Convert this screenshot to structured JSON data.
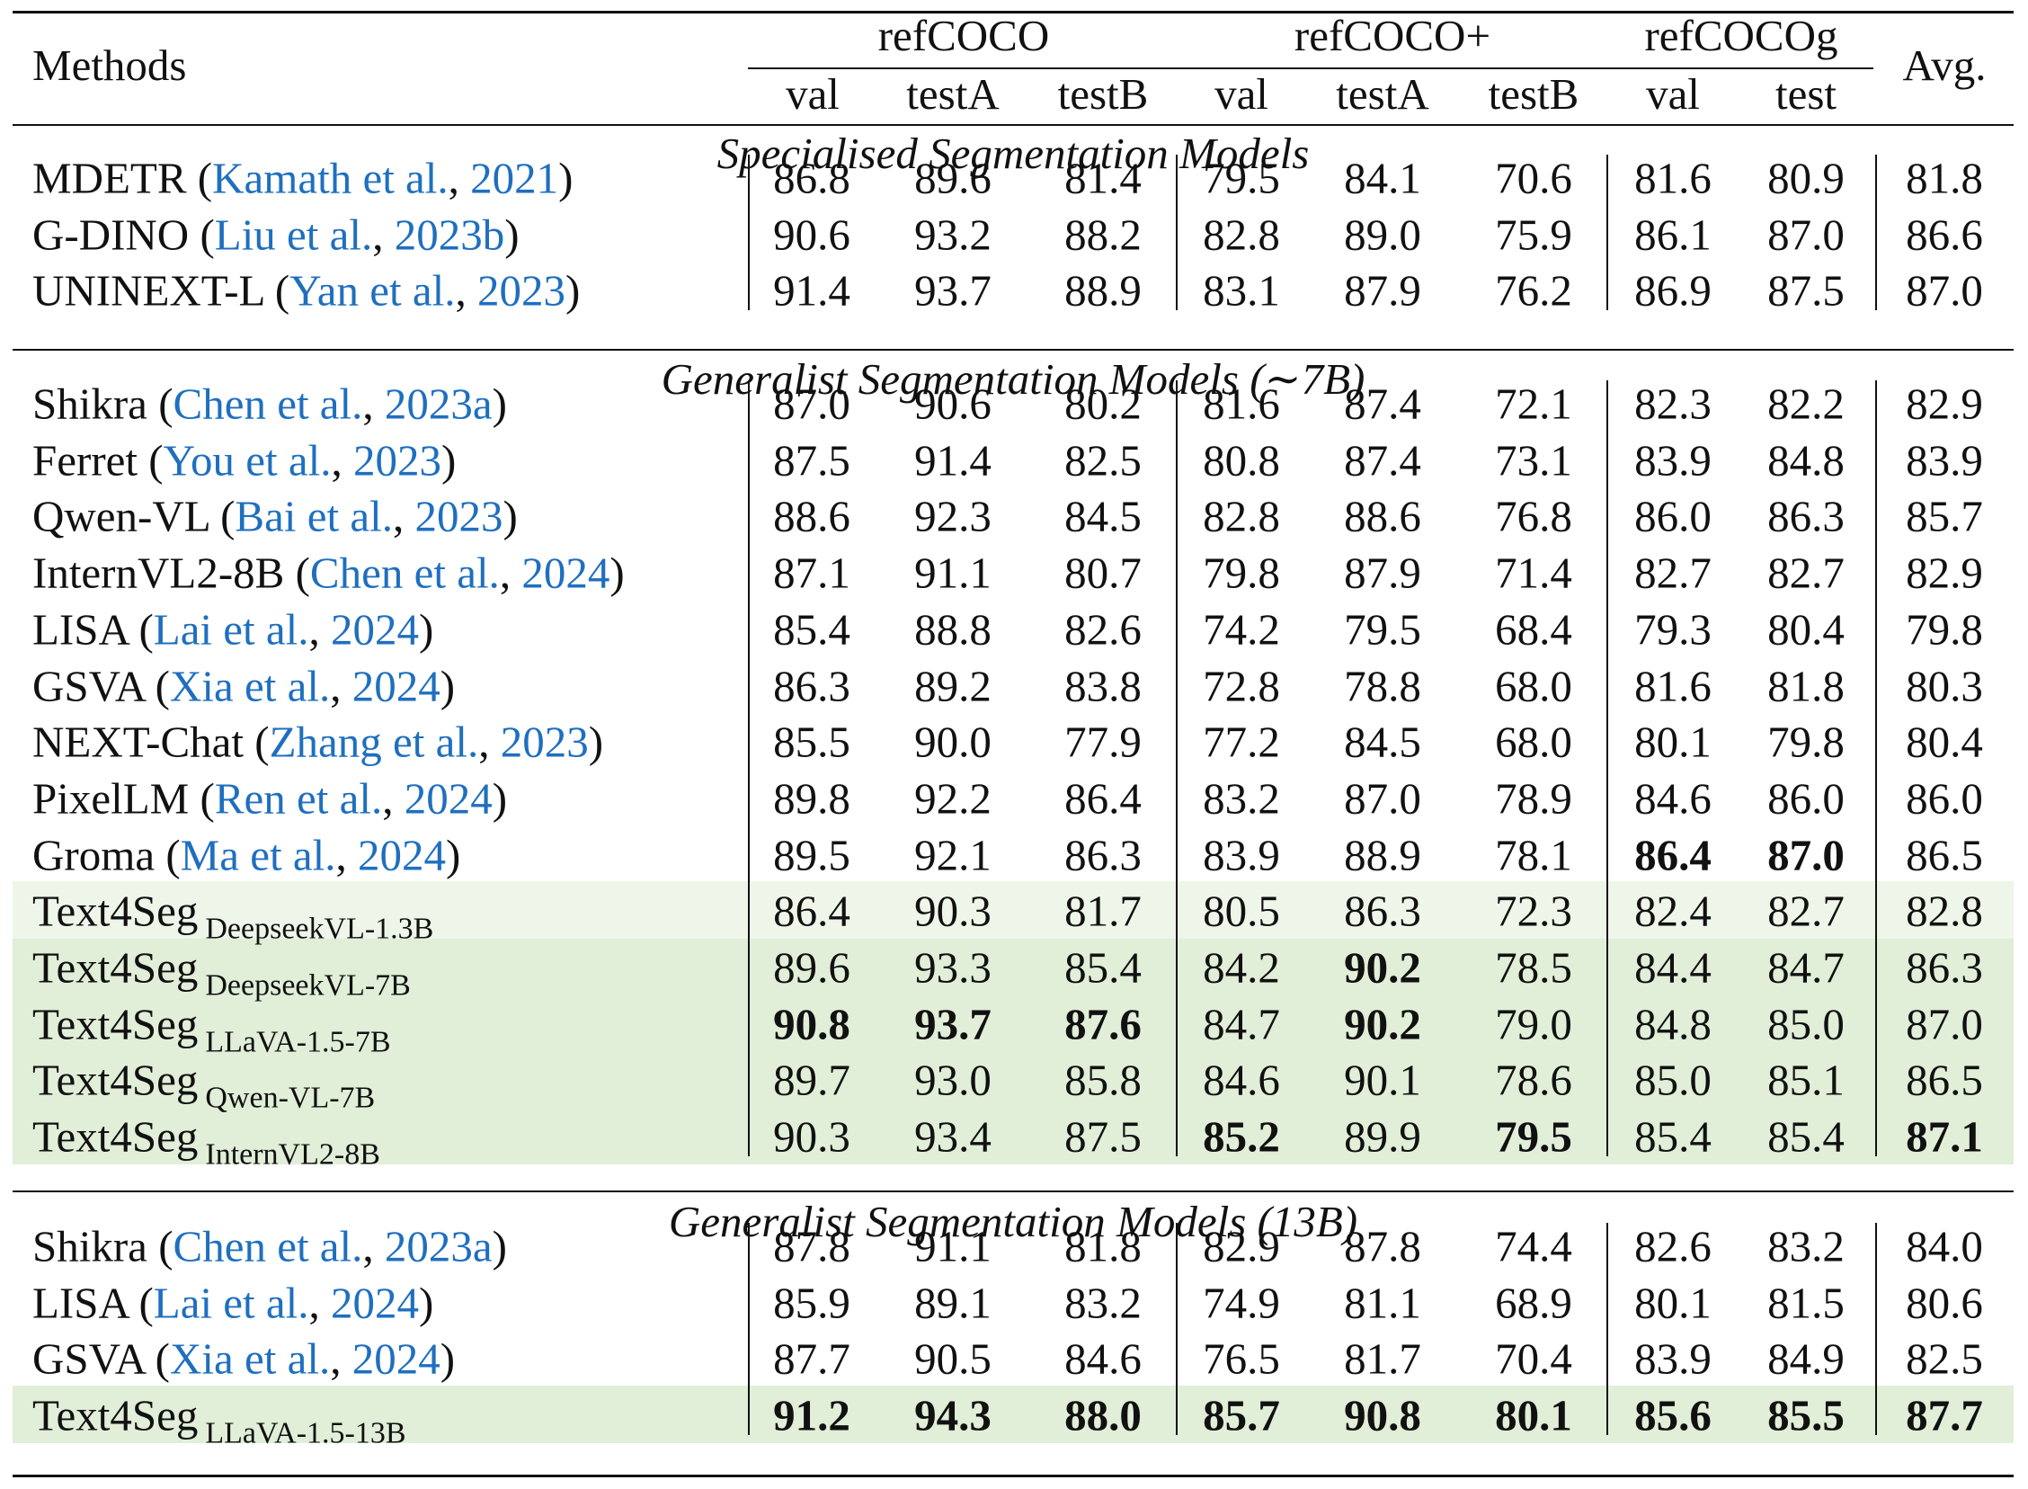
{
  "table": {
    "colors": {
      "cite_link": "#1f6fbf",
      "highlight_light": "#eef5e9",
      "highlight": "#e1eed8",
      "rule": "#111111"
    },
    "header": {
      "methods_label": "Methods",
      "avg_label": "Avg.",
      "groups": [
        {
          "label": "refCOCO",
          "subs": [
            "val",
            "testA",
            "testB"
          ]
        },
        {
          "label": "refCOCO+",
          "subs": [
            "val",
            "testA",
            "testB"
          ]
        },
        {
          "label": "refCOCOg",
          "subs": [
            "val",
            "test"
          ]
        }
      ]
    },
    "sections": [
      {
        "title": "Specialised Segmentation Models",
        "rows": [
          {
            "name": "MDETR",
            "authors": "Kamath et al.",
            "year": "2021",
            "values": [
              "86.8",
              "89.6",
              "81.4",
              "79.5",
              "84.1",
              "70.6",
              "81.6",
              "80.9",
              "81.8"
            ],
            "bold": []
          },
          {
            "name": "G-DINO",
            "authors": "Liu et al.",
            "year": "2023b",
            "values": [
              "90.6",
              "93.2",
              "88.2",
              "82.8",
              "89.0",
              "75.9",
              "86.1",
              "87.0",
              "86.6"
            ],
            "bold": []
          },
          {
            "name": "UNINEXT-L",
            "authors": "Yan et al.",
            "year": "2023",
            "values": [
              "91.4",
              "93.7",
              "88.9",
              "83.1",
              "87.9",
              "76.2",
              "86.9",
              "87.5",
              "87.0"
            ],
            "bold": []
          }
        ]
      },
      {
        "title": "Generalist Segmentation Models (∼7B)",
        "rows": [
          {
            "name": "Shikra",
            "authors": "Chen et al.",
            "year": "2023a",
            "values": [
              "87.0",
              "90.6",
              "80.2",
              "81.6",
              "87.4",
              "72.1",
              "82.3",
              "82.2",
              "82.9"
            ],
            "bold": []
          },
          {
            "name": "Ferret",
            "authors": "You et al.",
            "year": "2023",
            "values": [
              "87.5",
              "91.4",
              "82.5",
              "80.8",
              "87.4",
              "73.1",
              "83.9",
              "84.8",
              "83.9"
            ],
            "bold": []
          },
          {
            "name": "Qwen-VL",
            "authors": "Bai et al.",
            "year": "2023",
            "values": [
              "88.6",
              "92.3",
              "84.5",
              "82.8",
              "88.6",
              "76.8",
              "86.0",
              "86.3",
              "85.7"
            ],
            "bold": []
          },
          {
            "name": "InternVL2-8B",
            "authors": "Chen et al.",
            "year": "2024",
            "values": [
              "87.1",
              "91.1",
              "80.7",
              "79.8",
              "87.9",
              "71.4",
              "82.7",
              "82.7",
              "82.9"
            ],
            "bold": []
          },
          {
            "name": "LISA",
            "authors": "Lai et al.",
            "year": "2024",
            "values": [
              "85.4",
              "88.8",
              "82.6",
              "74.2",
              "79.5",
              "68.4",
              "79.3",
              "80.4",
              "79.8"
            ],
            "bold": []
          },
          {
            "name": "GSVA",
            "authors": "Xia et al.",
            "year": "2024",
            "values": [
              "86.3",
              "89.2",
              "83.8",
              "72.8",
              "78.8",
              "68.0",
              "81.6",
              "81.8",
              "80.3"
            ],
            "bold": []
          },
          {
            "name": "NEXT-Chat",
            "authors": "Zhang et al.",
            "year": "2023",
            "values": [
              "85.5",
              "90.0",
              "77.9",
              "77.2",
              "84.5",
              "68.0",
              "80.1",
              "79.8",
              "80.4"
            ],
            "bold": []
          },
          {
            "name": "PixelLM",
            "authors": "Ren et al.",
            "year": "2024",
            "values": [
              "89.8",
              "92.2",
              "86.4",
              "83.2",
              "87.0",
              "78.9",
              "84.6",
              "86.0",
              "86.0"
            ],
            "bold": []
          },
          {
            "name": "Groma",
            "authors": "Ma et al.",
            "year": "2024",
            "values": [
              "89.5",
              "92.1",
              "86.3",
              "83.9",
              "88.9",
              "78.1",
              "86.4",
              "87.0",
              "86.5"
            ],
            "bold": [
              6,
              7
            ]
          },
          {
            "name": "Text4Seg",
            "variant": "DeepseekVL-1.3B",
            "highlight": "light",
            "values": [
              "86.4",
              "90.3",
              "81.7",
              "80.5",
              "86.3",
              "72.3",
              "82.4",
              "82.7",
              "82.8"
            ],
            "bold": []
          },
          {
            "name": "Text4Seg",
            "variant": "DeepseekVL-7B",
            "highlight": "green",
            "values": [
              "89.6",
              "93.3",
              "85.4",
              "84.2",
              "90.2",
              "78.5",
              "84.4",
              "84.7",
              "86.3"
            ],
            "bold": [
              4
            ]
          },
          {
            "name": "Text4Seg",
            "variant": "LLaVA-1.5-7B",
            "highlight": "green",
            "values": [
              "90.8",
              "93.7",
              "87.6",
              "84.7",
              "90.2",
              "79.0",
              "84.8",
              "85.0",
              "87.0"
            ],
            "bold": [
              0,
              1,
              2,
              4
            ]
          },
          {
            "name": "Text4Seg",
            "variant": "Qwen-VL-7B",
            "highlight": "green",
            "values": [
              "89.7",
              "93.0",
              "85.8",
              "84.6",
              "90.1",
              "78.6",
              "85.0",
              "85.1",
              "86.5"
            ],
            "bold": []
          },
          {
            "name": "Text4Seg",
            "variant": "InternVL2-8B",
            "highlight": "green",
            "values": [
              "90.3",
              "93.4",
              "87.5",
              "85.2",
              "89.9",
              "79.5",
              "85.4",
              "85.4",
              "87.1"
            ],
            "bold": [
              3,
              5,
              8
            ]
          }
        ]
      },
      {
        "title": "Generalist Segmentation Models (13B)",
        "rows": [
          {
            "name": "Shikra",
            "authors": "Chen et al.",
            "year": "2023a",
            "values": [
              "87.8",
              "91.1",
              "81.8",
              "82.9",
              "87.8",
              "74.4",
              "82.6",
              "83.2",
              "84.0"
            ],
            "bold": []
          },
          {
            "name": "LISA",
            "authors": "Lai et al.",
            "year": "2024",
            "values": [
              "85.9",
              "89.1",
              "83.2",
              "74.9",
              "81.1",
              "68.9",
              "80.1",
              "81.5",
              "80.6"
            ],
            "bold": []
          },
          {
            "name": "GSVA",
            "authors": "Xia et al.",
            "year": "2024",
            "values": [
              "87.7",
              "90.5",
              "84.6",
              "76.5",
              "81.7",
              "70.4",
              "83.9",
              "84.9",
              "82.5"
            ],
            "bold": []
          },
          {
            "name": "Text4Seg",
            "variant": "LLaVA-1.5-13B",
            "highlight": "green",
            "values": [
              "91.2",
              "94.3",
              "88.0",
              "85.7",
              "90.8",
              "80.1",
              "85.6",
              "85.5",
              "87.7"
            ],
            "bold": [
              0,
              1,
              2,
              3,
              4,
              5,
              6,
              7,
              8
            ]
          }
        ]
      }
    ]
  }
}
